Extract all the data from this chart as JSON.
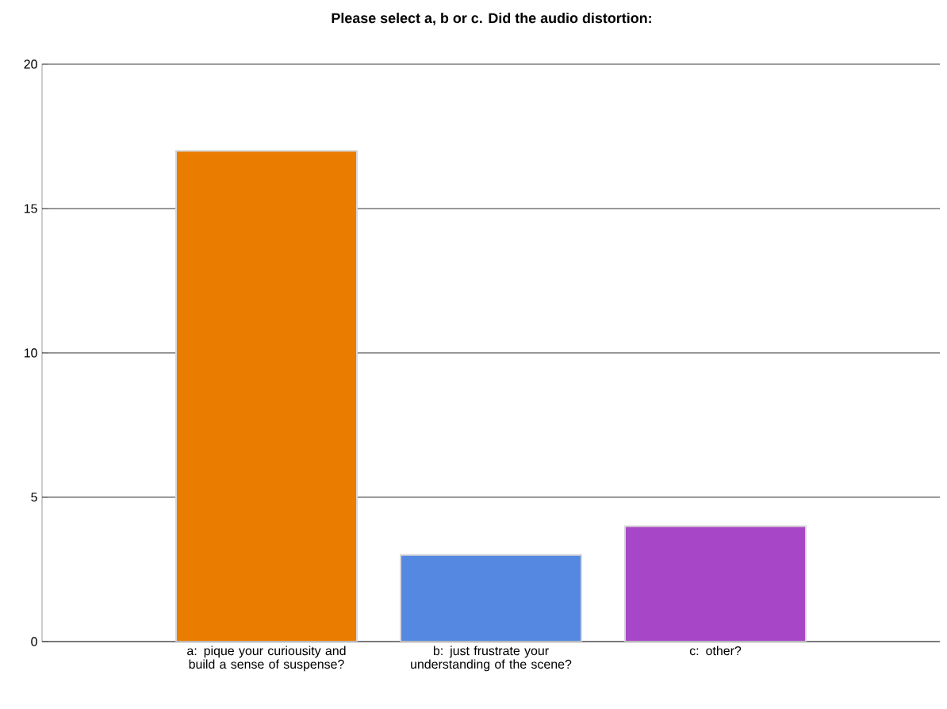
{
  "chart_data": {
    "type": "bar",
    "title": "Please select a, b or c.   Did the audio distortion:",
    "categories": [
      "a: pique your curiousity and build a sense of suspense?",
      "b: just frustrate your understanding of the scene?",
      "c: other?"
    ],
    "values": [
      17,
      3,
      4
    ],
    "colors": [
      "#ea7c00",
      "#5588e0",
      "#a846c8"
    ],
    "ylim": [
      0,
      20
    ],
    "yticks": [
      0,
      5,
      10,
      15,
      20
    ],
    "grid": "y"
  }
}
